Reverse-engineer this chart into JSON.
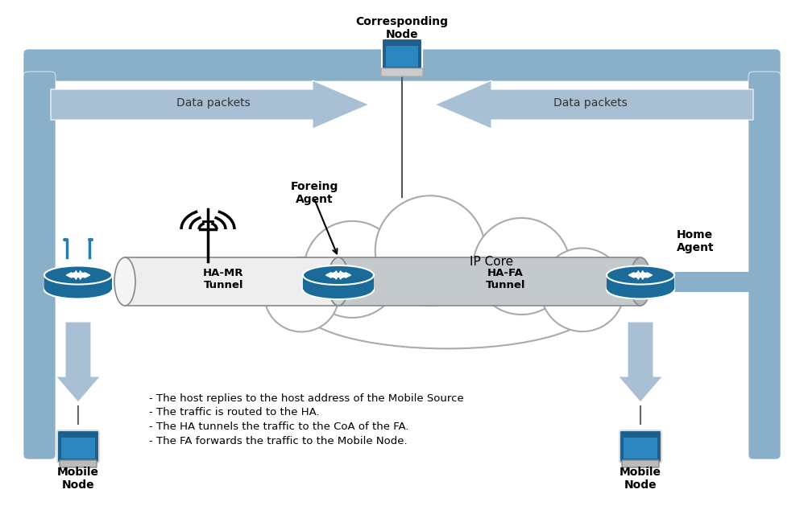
{
  "bg_color": "#ffffff",
  "frame_color": "#8aafc8",
  "arrow_color": "#a8bfd4",
  "router_color": "#1a6b9a",
  "cloud_color": "#ffffff",
  "cloud_border": "#aaaaaa",
  "annotations": [
    "- The host replies to the host address of the Mobile Source",
    "- The traffic is routed to the HA.",
    "- The HA tunnels the traffic to the CoA of the FA.",
    "- The FA forwards the traffic to the Mobile Node."
  ],
  "labels": {
    "mobile_node_left": "Mobile\nNode",
    "mobile_node_right": "Mobile\nNode",
    "corresponding_node": "Corresponding\nNode",
    "home_agent": "Home\nAgent",
    "foreign_agent": "Foreing\nAgent",
    "ip_core": "IP Core",
    "ha_mr_tunnel": "HA-MR\nTunnel",
    "ha_fa_tunnel": "HA-FA\nTunnel",
    "data_packets_left": "Data packets",
    "data_packets_right": "Data packets"
  }
}
